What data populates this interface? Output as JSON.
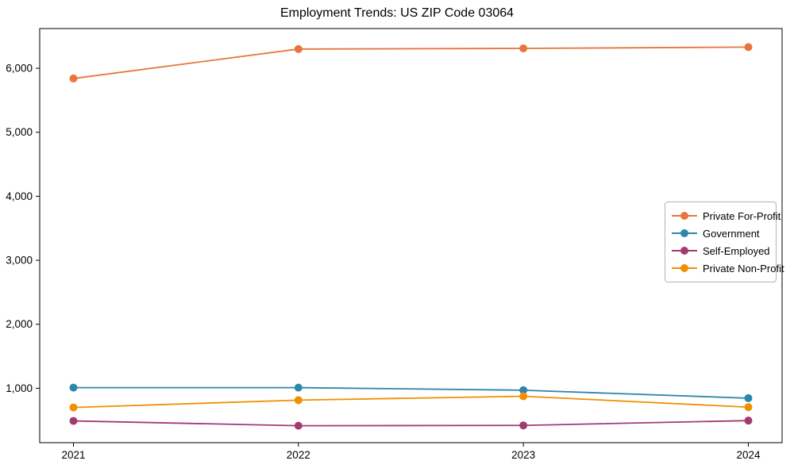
{
  "chart_data": {
    "type": "line",
    "title": "Employment Trends: US ZIP Code 03064",
    "xlabel": "",
    "ylabel": "",
    "x": [
      2021,
      2022,
      2023,
      2024
    ],
    "x_tick_labels": [
      "2021",
      "2022",
      "2023",
      "2024"
    ],
    "series": [
      {
        "name": "Private For-Profit",
        "color": "#E8753C",
        "values": [
          5840,
          6300,
          6310,
          6330
        ]
      },
      {
        "name": "Government",
        "color": "#2E86AB",
        "values": [
          1010,
          1010,
          970,
          845
        ]
      },
      {
        "name": "Self-Employed",
        "color": "#A23B72",
        "values": [
          490,
          415,
          420,
          495
        ]
      },
      {
        "name": "Private Non-Profit",
        "color": "#F18F01",
        "values": [
          700,
          815,
          875,
          705
        ]
      }
    ],
    "y_ticks": [
      1000,
      2000,
      3000,
      4000,
      5000,
      6000
    ],
    "y_tick_labels": [
      "1,000",
      "2,000",
      "3,000",
      "4,000",
      "5,000",
      "6,000"
    ],
    "ylim": [
      150,
      6620
    ],
    "xlim": [
      2020.85,
      2024.15
    ],
    "grid": false,
    "legend_position": "center-right",
    "marker": "circle",
    "frame_color": "#000000"
  }
}
